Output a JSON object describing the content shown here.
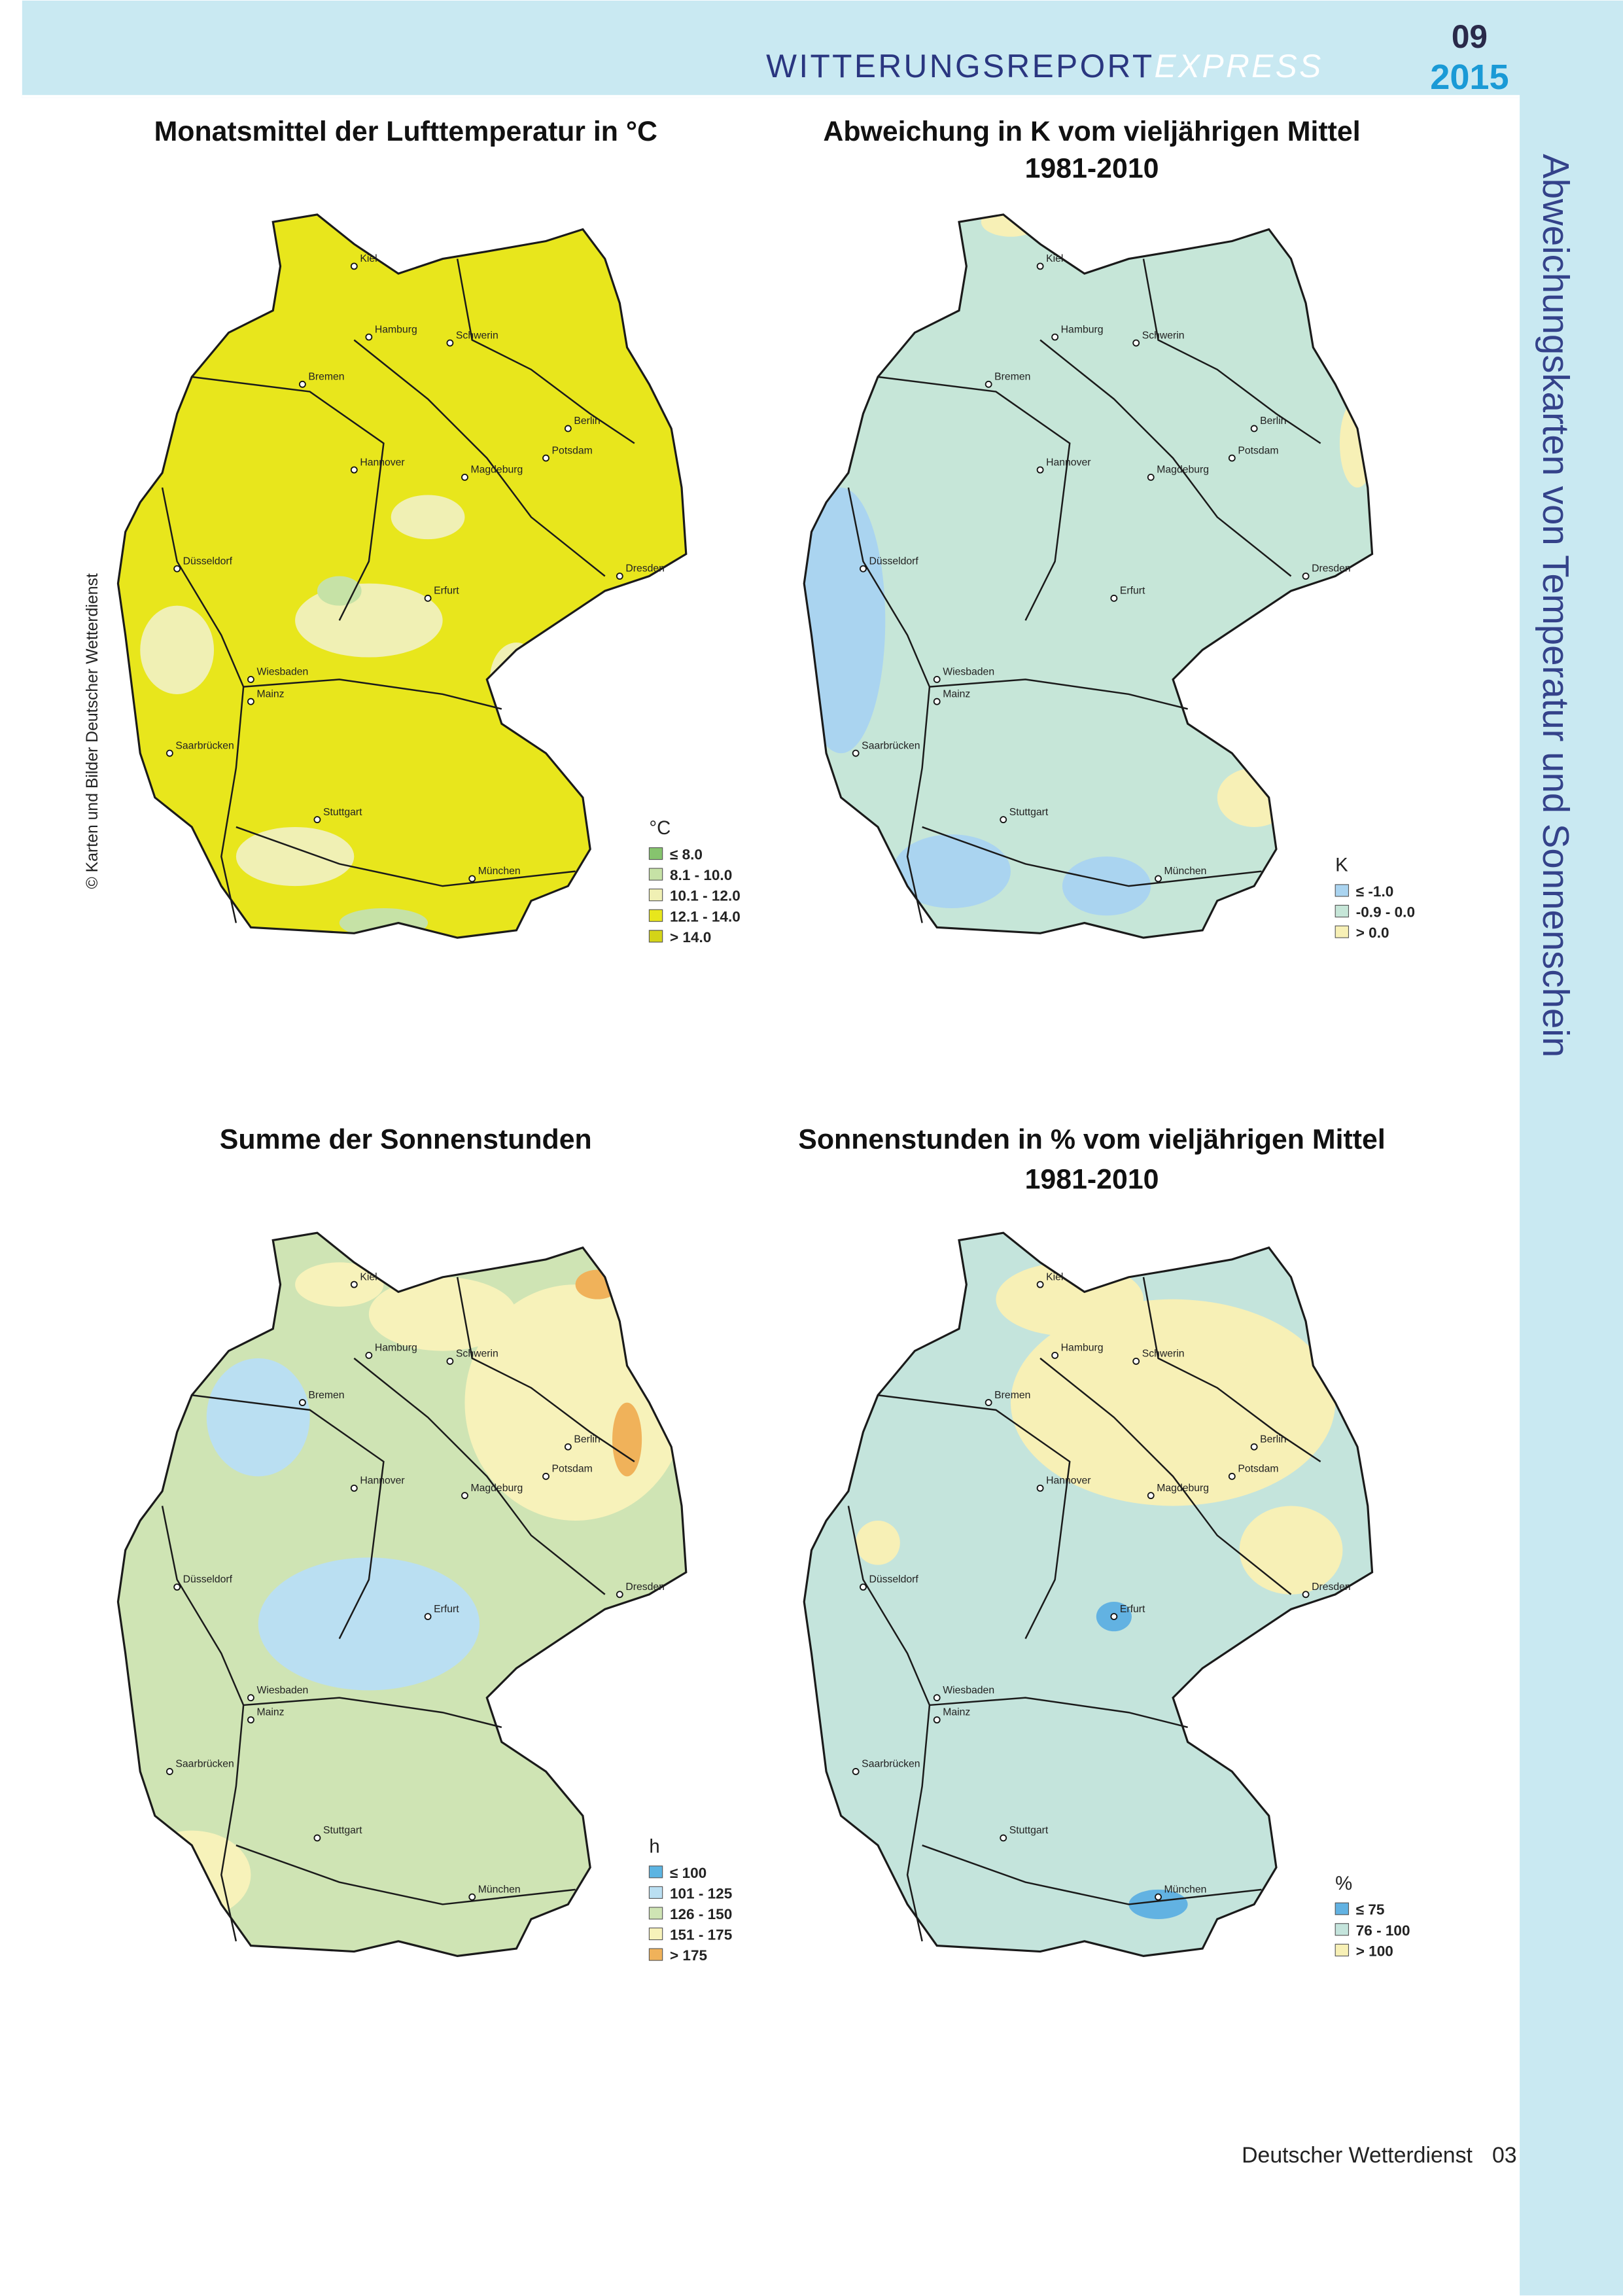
{
  "header": {
    "title_main": "WITTERUNGSREPORT",
    "title_suffix": "EXPRESS",
    "month": "09",
    "year": "2015"
  },
  "side_title": "Abweichungskarten von Temperatur und Sonnenschein",
  "copyright": "© Karten und Bilder Deutscher Wetterdienst",
  "footer": {
    "publisher": "Deutscher Wetterdienst",
    "page": "03"
  },
  "cities": [
    "Kiel",
    "Hamburg",
    "Schwerin",
    "Bremen",
    "Berlin",
    "Potsdam",
    "Hannover",
    "Magdeburg",
    "Düsseldorf",
    "Erfurt",
    "Dresden",
    "Wiesbaden",
    "Mainz",
    "Saarbrücken",
    "Stuttgart",
    "München"
  ],
  "maps": [
    {
      "title": [
        "Monatsmittel der Lufttemperatur in °C"
      ],
      "legend": {
        "unit": "°C",
        "items": [
          {
            "label": "≤  8.0",
            "color": "#86c46e"
          },
          {
            "label": "8.1 - 10.0",
            "color": "#c6e2a6"
          },
          {
            "label": "10.1 - 12.0",
            "color": "#f0f0b4"
          },
          {
            "label": "12.1 - 14.0",
            "color": "#e8e61c"
          },
          {
            "label": "> 14.0",
            "color": "#d4d418"
          }
        ]
      }
    },
    {
      "title": [
        "Abweichung in K vom vieljährigen Mittel",
        "1981-2010"
      ],
      "legend": {
        "unit": "K",
        "items": [
          {
            "label": "≤  -1.0",
            "color": "#aad4f0"
          },
          {
            "label": "-0.9 - 0.0",
            "color": "#c6e6d8"
          },
          {
            "label": "> 0.0",
            "color": "#f7f0b6"
          }
        ]
      }
    },
    {
      "title": [
        "Summe der Sonnenstunden"
      ],
      "legend": {
        "unit": "h",
        "items": [
          {
            "label": "≤  100",
            "color": "#5cb4e2"
          },
          {
            "label": "101 - 125",
            "color": "#badff2"
          },
          {
            "label": "126 - 150",
            "color": "#cfe4b4"
          },
          {
            "label": "151 - 175",
            "color": "#f7f2ba"
          },
          {
            "label": "> 175",
            "color": "#f0b25a"
          }
        ]
      }
    },
    {
      "title": [
        "Sonnenstunden in % vom vieljährigen Mittel",
        "1981-2010"
      ],
      "legend": {
        "unit": "%",
        "items": [
          {
            "label": "≤  75",
            "color": "#62b2e2"
          },
          {
            "label": "76 - 100",
            "color": "#c4e4dc"
          },
          {
            "label": "> 100",
            "color": "#f7f0b6"
          }
        ]
      }
    }
  ]
}
